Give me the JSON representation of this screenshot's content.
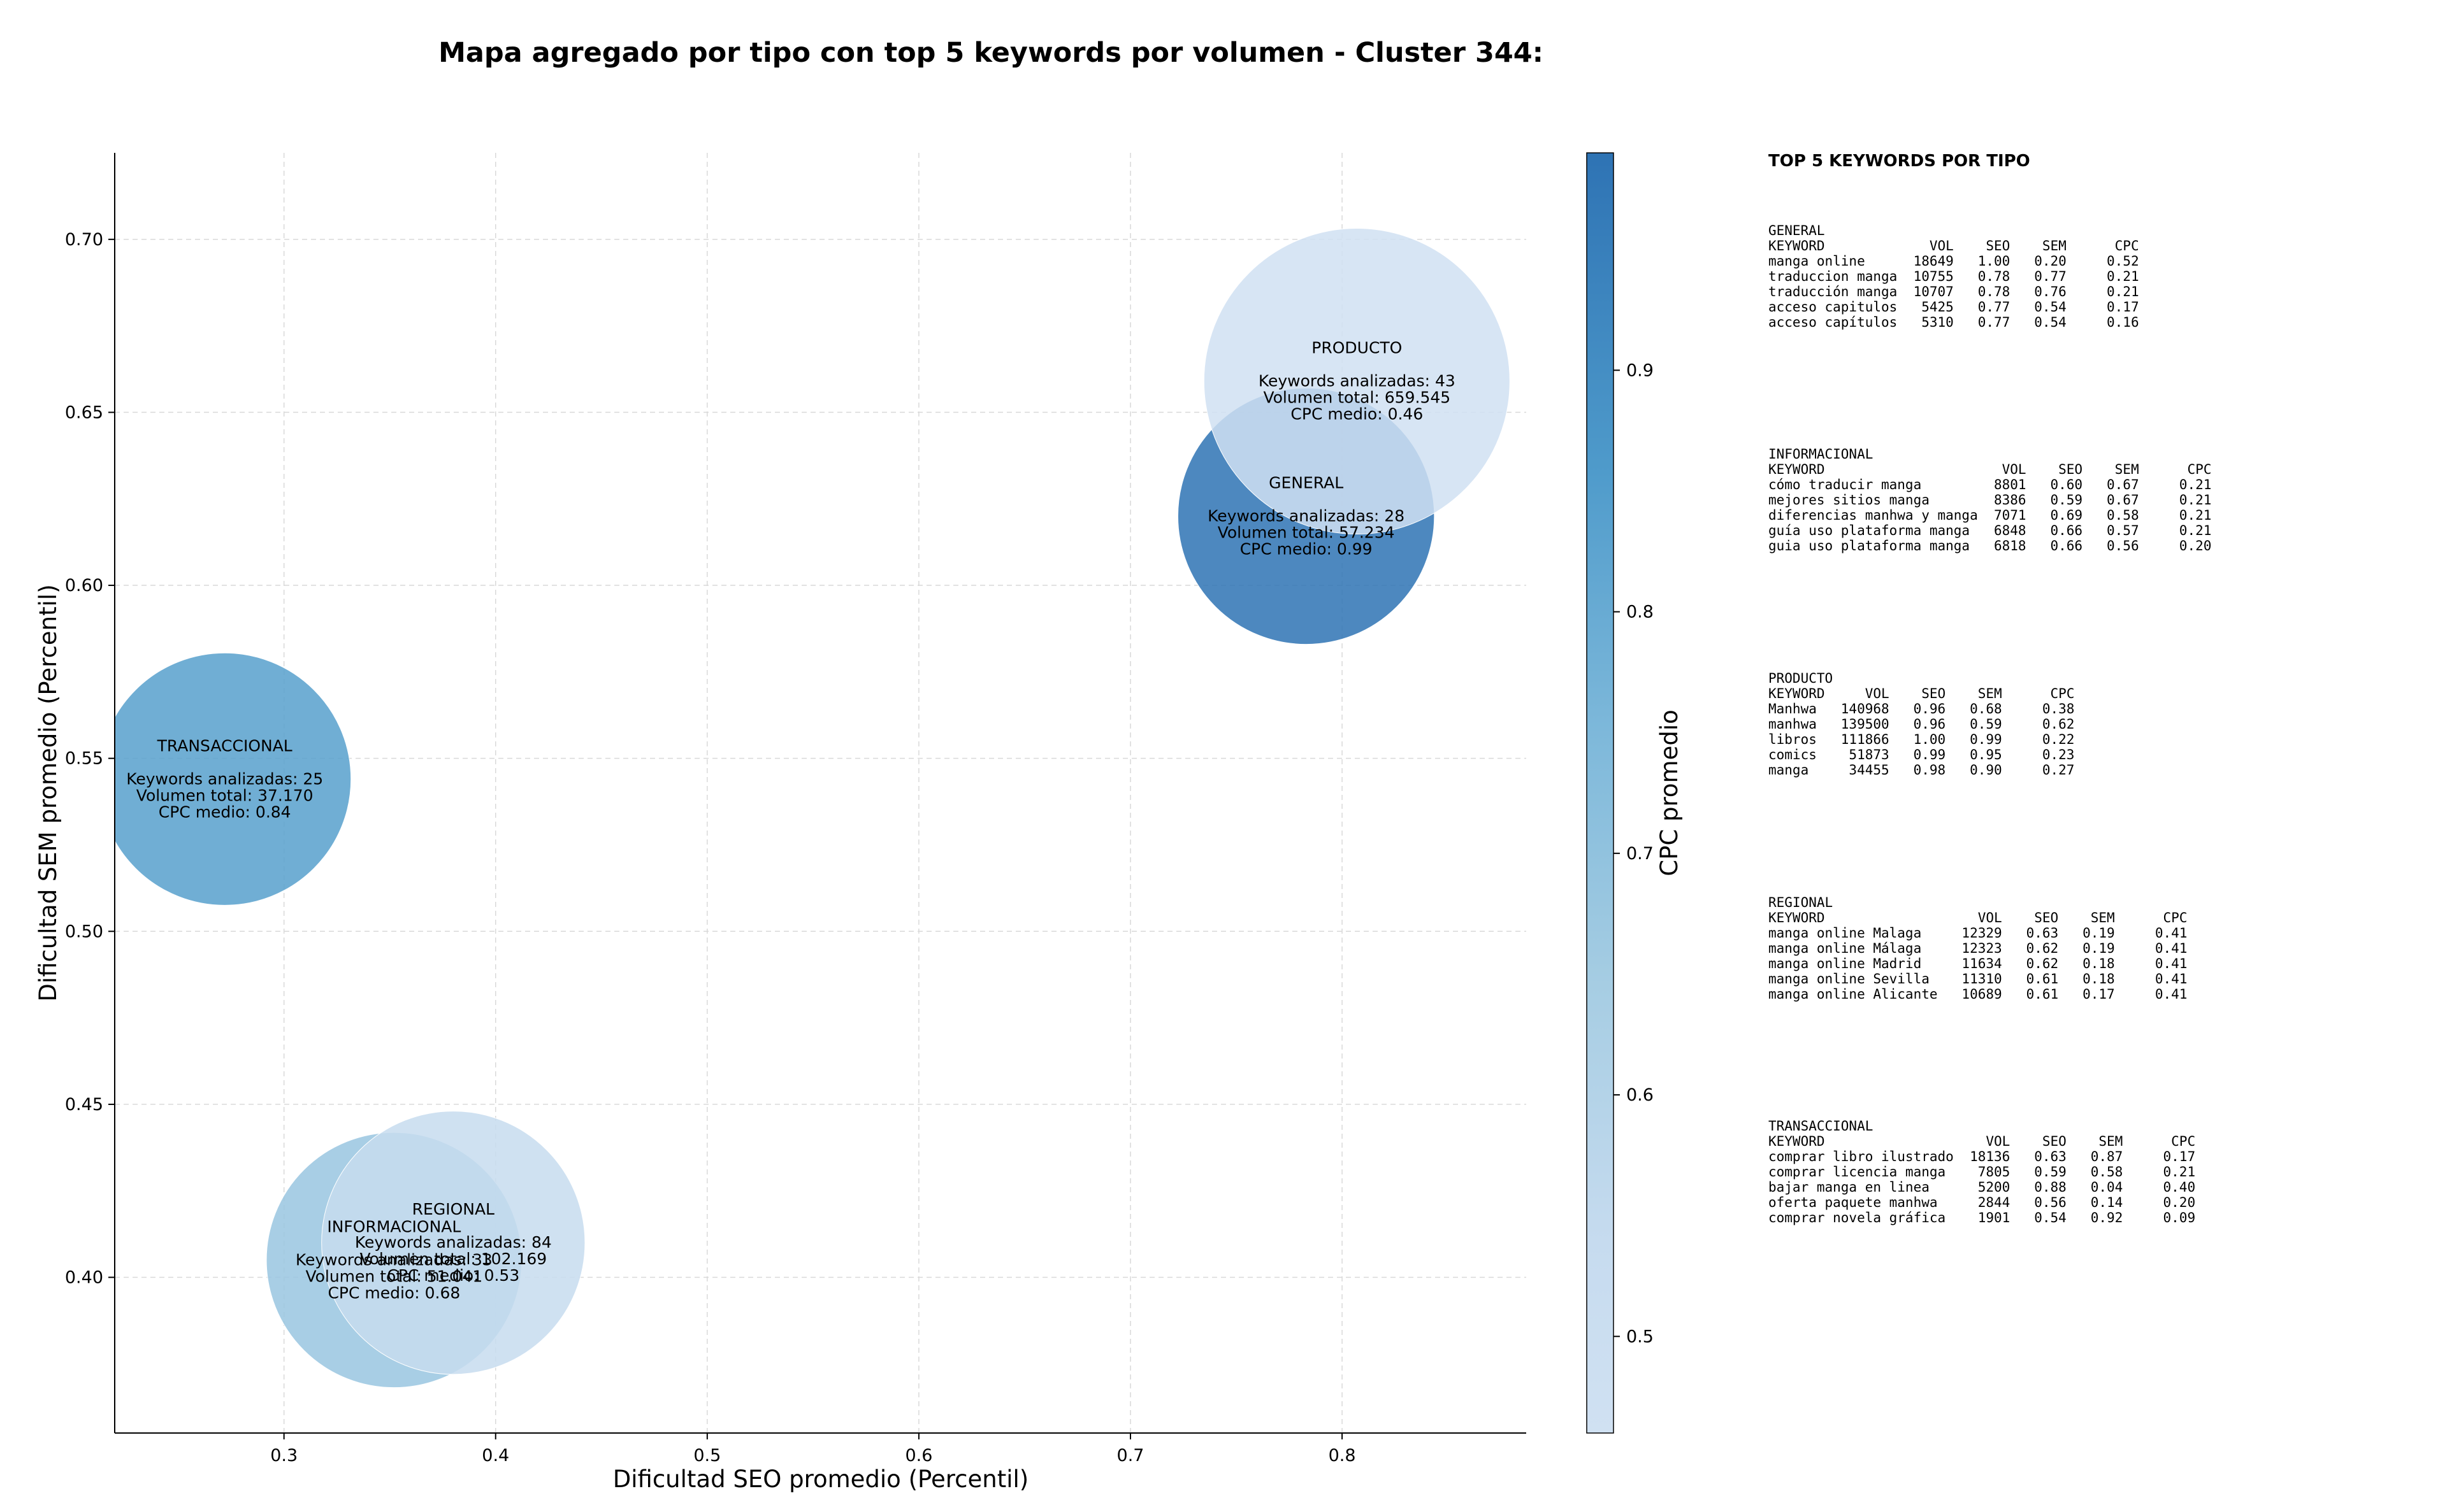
{
  "chart_data": {
    "type": "scatter",
    "title": "Mapa agregado por tipo con top 5 keywords por volumen - Cluster 344:",
    "xlabel": "Dificultad SEO promedio (Percentil)",
    "ylabel": "Dificultad SEM promedio (Percentil)",
    "xlim": [
      0.22,
      0.887
    ],
    "ylim": [
      0.355,
      0.725
    ],
    "xticks": [
      "0.3",
      "0.4",
      "0.5",
      "0.6",
      "0.7",
      "0.8"
    ],
    "xtick_values": [
      0.3,
      0.4,
      0.5,
      0.6,
      0.7,
      0.8
    ],
    "yticks": [
      "0.40",
      "0.45",
      "0.50",
      "0.55",
      "0.60",
      "0.65",
      "0.70"
    ],
    "ytick_values": [
      0.4,
      0.45,
      0.5,
      0.55,
      0.6,
      0.65,
      0.7
    ],
    "grid": true,
    "colorbar": {
      "label": "CPC promedio",
      "min": 0.46,
      "max": 0.99,
      "ticks": [
        "0.5",
        "0.6",
        "0.7",
        "0.8",
        "0.9"
      ],
      "tick_values": [
        0.5,
        0.6,
        0.7,
        0.8,
        0.9
      ],
      "colormap": "Blues"
    },
    "points": [
      {
        "name": "GENERAL",
        "x": 0.783,
        "y": 0.62,
        "cpc": 0.99,
        "volume": 57234,
        "lines": [
          "GENERAL",
          "",
          "Keywords analizadas: 28",
          "Volumen total: 57.234",
          "CPC medio: 0.99"
        ]
      },
      {
        "name": "PRODUCTO",
        "x": 0.807,
        "y": 0.659,
        "cpc": 0.46,
        "volume": 659545,
        "lines": [
          "PRODUCTO",
          "",
          "Keywords analizadas: 43",
          "Volumen total: 659.545",
          "CPC medio: 0.46"
        ]
      },
      {
        "name": "TRANSACCIONAL",
        "x": 0.272,
        "y": 0.544,
        "cpc": 0.84,
        "volume": 37170,
        "lines": [
          "TRANSACCIONAL",
          "",
          "Keywords analizadas: 25",
          "Volumen total: 37.170",
          "CPC medio: 0.84"
        ]
      },
      {
        "name": "INFORMACIONAL",
        "x": 0.352,
        "y": 0.405,
        "cpc": 0.68,
        "volume": 51041,
        "lines": [
          "INFORMACIONAL",
          "",
          "Keywords analizadas: 33",
          "Volumen total: 51.041",
          "CPC medio: 0.68"
        ]
      },
      {
        "name": "REGIONAL",
        "x": 0.38,
        "y": 0.41,
        "cpc": 0.53,
        "volume": 102169,
        "lines": [
          "REGIONAL",
          "",
          "Keywords analizadas: 84",
          "Volumen total: 102.169",
          "CPC medio: 0.53"
        ]
      }
    ]
  },
  "side_panel": {
    "title": "TOP 5 KEYWORDS POR TIPO",
    "blocks": [
      {
        "name": "GENERAL",
        "lines": [
          "GENERAL",
          "KEYWORD             VOL    SEO    SEM      CPC",
          "manga online      18649   1.00   0.20     0.52",
          "traduccion manga  10755   0.78   0.77     0.21",
          "traducción manga  10707   0.78   0.76     0.21",
          "acceso capitulos   5425   0.77   0.54     0.17",
          "acceso capítulos   5310   0.77   0.54     0.16"
        ]
      },
      {
        "name": "INFORMACIONAL",
        "lines": [
          "INFORMACIONAL",
          "KEYWORD                      VOL    SEO    SEM      CPC",
          "cómo traducir manga         8801   0.60   0.67     0.21",
          "mejores sitios manga        8386   0.59   0.67     0.21",
          "diferencias manhwa y manga  7071   0.69   0.58     0.21",
          "guía uso plataforma manga   6848   0.66   0.57     0.21",
          "guia uso plataforma manga   6818   0.66   0.56     0.20"
        ]
      },
      {
        "name": "PRODUCTO",
        "lines": [
          "PRODUCTO",
          "KEYWORD     VOL    SEO    SEM      CPC",
          "Manhwa   140968   0.96   0.68     0.38",
          "manhwa   139500   0.96   0.59     0.62",
          "libros   111866   1.00   0.99     0.22",
          "comics    51873   0.99   0.95     0.23",
          "manga     34455   0.98   0.90     0.27"
        ]
      },
      {
        "name": "REGIONAL",
        "lines": [
          "REGIONAL",
          "KEYWORD                   VOL    SEO    SEM      CPC",
          "manga online Malaga     12329   0.63   0.19     0.41",
          "manga online Málaga     12323   0.62   0.19     0.41",
          "manga online Madrid     11634   0.62   0.18     0.41",
          "manga online Sevilla    11310   0.61   0.18     0.41",
          "manga online Alicante   10689   0.61   0.17     0.41"
        ]
      },
      {
        "name": "TRANSACCIONAL",
        "lines": [
          "TRANSACCIONAL",
          "KEYWORD                    VOL    SEO    SEM      CPC",
          "comprar libro ilustrado  18136   0.63   0.87     0.17",
          "comprar licencia manga    7805   0.59   0.58     0.21",
          "bajar manga en linea      5200   0.88   0.04     0.40",
          "oferta paquete manhwa     2844   0.56   0.14     0.20",
          "comprar novela gráfica    1901   0.54   0.92     0.09"
        ]
      }
    ]
  }
}
